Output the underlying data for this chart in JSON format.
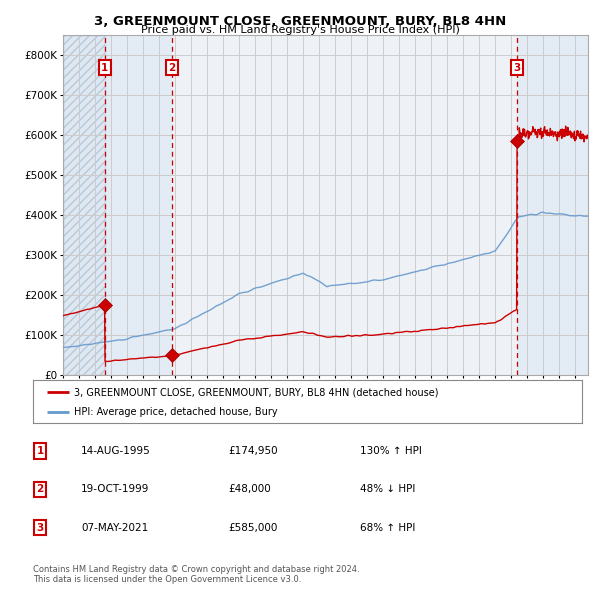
{
  "title": "3, GREENMOUNT CLOSE, GREENMOUNT, BURY, BL8 4HN",
  "subtitle": "Price paid vs. HM Land Registry's House Price Index (HPI)",
  "xlim": [
    1993.0,
    2025.8
  ],
  "ylim": [
    0,
    850000
  ],
  "yticks": [
    0,
    100000,
    200000,
    300000,
    400000,
    500000,
    600000,
    700000,
    800000
  ],
  "ytick_labels": [
    "£0",
    "£100K",
    "£200K",
    "£300K",
    "£400K",
    "£500K",
    "£600K",
    "£700K",
    "£800K"
  ],
  "sale_dates": [
    1995.617,
    1999.8,
    2021.354
  ],
  "sale_prices": [
    174950,
    48000,
    585000
  ],
  "sale_labels": [
    "1",
    "2",
    "3"
  ],
  "legend_line1": "3, GREENMOUNT CLOSE, GREENMOUNT, BURY, BL8 4HN (detached house)",
  "legend_line2": "HPI: Average price, detached house, Bury",
  "table_rows": [
    [
      "1",
      "14-AUG-1995",
      "£174,950",
      "130% ↑ HPI"
    ],
    [
      "2",
      "19-OCT-1999",
      "£48,000",
      "48% ↓ HPI"
    ],
    [
      "3",
      "07-MAY-2021",
      "£585,000",
      "68% ↑ HPI"
    ]
  ],
  "footnote1": "Contains HM Land Registry data © Crown copyright and database right 2024.",
  "footnote2": "This data is licensed under the Open Government Licence v3.0.",
  "sale_line_color": "#cc0000",
  "sale_dot_color": "#cc0000",
  "hpi_line_color": "#6699cc",
  "price_line_color": "#cc0000",
  "label_box_color": "#cc0000",
  "grid_color": "#cccccc",
  "bg_color": "#ffffff",
  "plot_bg_color": "#eef2f7"
}
